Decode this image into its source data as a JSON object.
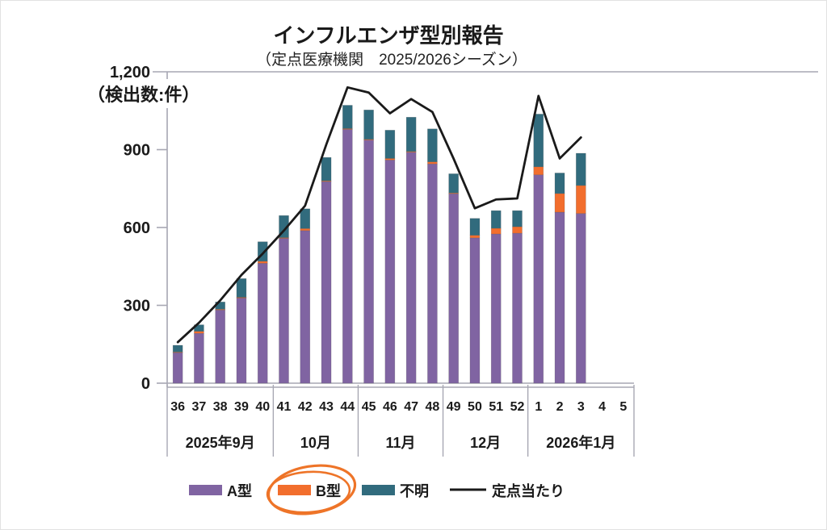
{
  "title": "インフルエンザ型別報告",
  "subtitle": "（定点医療機関　2025/2026シーズン）",
  "y_axis": {
    "unit_label": "（検出数:件）",
    "max": 1200,
    "ticks": [
      {
        "value": 0,
        "label": "0"
      },
      {
        "value": 300,
        "label": "300"
      },
      {
        "value": 600,
        "label": "600"
      },
      {
        "value": 900,
        "label": "900"
      },
      {
        "value": 1200,
        "label": "1,200"
      }
    ]
  },
  "x_axis": {
    "groups": [
      {
        "label": "2025年9月",
        "weeks": [
          "36",
          "37",
          "38",
          "39",
          "40"
        ]
      },
      {
        "label": "10月",
        "weeks": [
          "41",
          "42",
          "43",
          "44"
        ]
      },
      {
        "label": "11月",
        "weeks": [
          "45",
          "46",
          "47",
          "48"
        ]
      },
      {
        "label": "12月",
        "weeks": [
          "49",
          "50",
          "51",
          "52"
        ]
      },
      {
        "label": "2026年1月",
        "weeks": [
          "1",
          "2",
          "3",
          "4",
          "5"
        ]
      }
    ]
  },
  "legend": {
    "items": [
      {
        "label": "A型",
        "color": "#8064A2",
        "swatch": "box"
      },
      {
        "label": "B型",
        "color": "#F26E2D",
        "swatch": "box",
        "annotated": true
      },
      {
        "label": "不明",
        "color": "#316B7D",
        "swatch": "box"
      },
      {
        "label": "定点当たり",
        "color": "#1A1A1A",
        "swatch": "line"
      }
    ],
    "annotation_color": "#EE7428"
  },
  "chart_data": {
    "type": "combo (stacked bar + line)",
    "title": "インフルエンザ型別報告",
    "subtitle": "（定点医療機関　2025/2026シーズン）",
    "ylabel": "（検出数:件）",
    "ylim": [
      0,
      1200
    ],
    "grid": "top border line only; outside tick marks at 0/300/600/900",
    "legend_position": "bottom",
    "stacked": true,
    "categories": [
      "36",
      "37",
      "38",
      "39",
      "40",
      "41",
      "42",
      "43",
      "44",
      "45",
      "46",
      "47",
      "48",
      "49",
      "50",
      "51",
      "52",
      "1",
      "2",
      "3",
      "4",
      "5"
    ],
    "bar_series": [
      {
        "name": "A型",
        "color": "#8064A2",
        "values": [
          118,
          192,
          282,
          328,
          462,
          558,
          588,
          777,
          978,
          937,
          860,
          890,
          845,
          730,
          560,
          575,
          578,
          803,
          659,
          654,
          null,
          null
        ]
      },
      {
        "name": "B型",
        "color": "#F26E2D",
        "values": [
          2,
          8,
          3,
          3,
          8,
          3,
          8,
          3,
          3,
          3,
          6,
          3,
          8,
          3,
          10,
          22,
          25,
          31,
          72,
          108,
          null,
          null
        ]
      },
      {
        "name": "不明",
        "color": "#316B7D",
        "values": [
          26,
          25,
          28,
          72,
          75,
          85,
          76,
          90,
          90,
          113,
          109,
          132,
          127,
          74,
          65,
          68,
          62,
          203,
          79,
          124,
          null,
          null
        ]
      }
    ],
    "line_series": [
      {
        "name": "定点当たり",
        "color": "#1A1A1A",
        "values": [
          158,
          233,
          319,
          417,
          499,
          588,
          684,
          920,
          1140,
          1120,
          1040,
          1095,
          1045,
          865,
          674,
          708,
          712,
          1107,
          866,
          947,
          null,
          null
        ]
      }
    ]
  }
}
